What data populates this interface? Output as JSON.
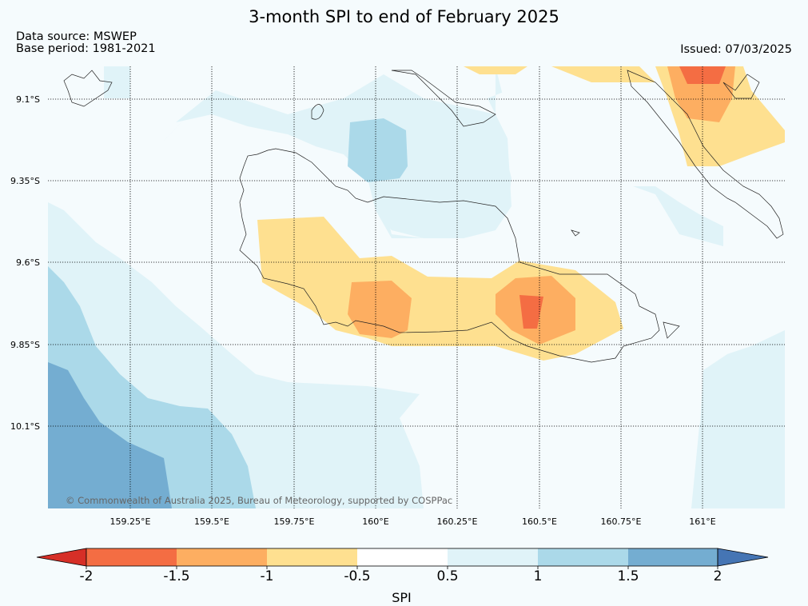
{
  "title": "3-month SPI to end of February 2025",
  "data_source": "Data source: MSWEP",
  "base_period": "Base period: 1981-2021",
  "issued": "Issued: 07/03/2025",
  "copyright": "© Commonwealth of Australia 2025, Bureau of Meteorology, supported by COSPPac",
  "lat_labels": [
    "9.1°S",
    "9.35°S",
    "9.6°S",
    "9.85°S",
    "10.1°S"
  ],
  "lon_labels": [
    "159.25°E",
    "159.5°E",
    "159.75°E",
    "160°E",
    "160.25°E",
    "160.5°E",
    "160.75°E",
    "161°E"
  ],
  "colorbar": {
    "label": "SPI",
    "ticks": [
      "-2",
      "-1.5",
      "-1",
      "-0.5",
      "0.5",
      "1",
      "1.5",
      "2"
    ],
    "colors": [
      "#d62f27",
      "#f46d43",
      "#fdae61",
      "#fee090",
      "#ffffff",
      "#e0f3f8",
      "#abd9e9",
      "#74add1",
      "#4575b4"
    ]
  }
}
